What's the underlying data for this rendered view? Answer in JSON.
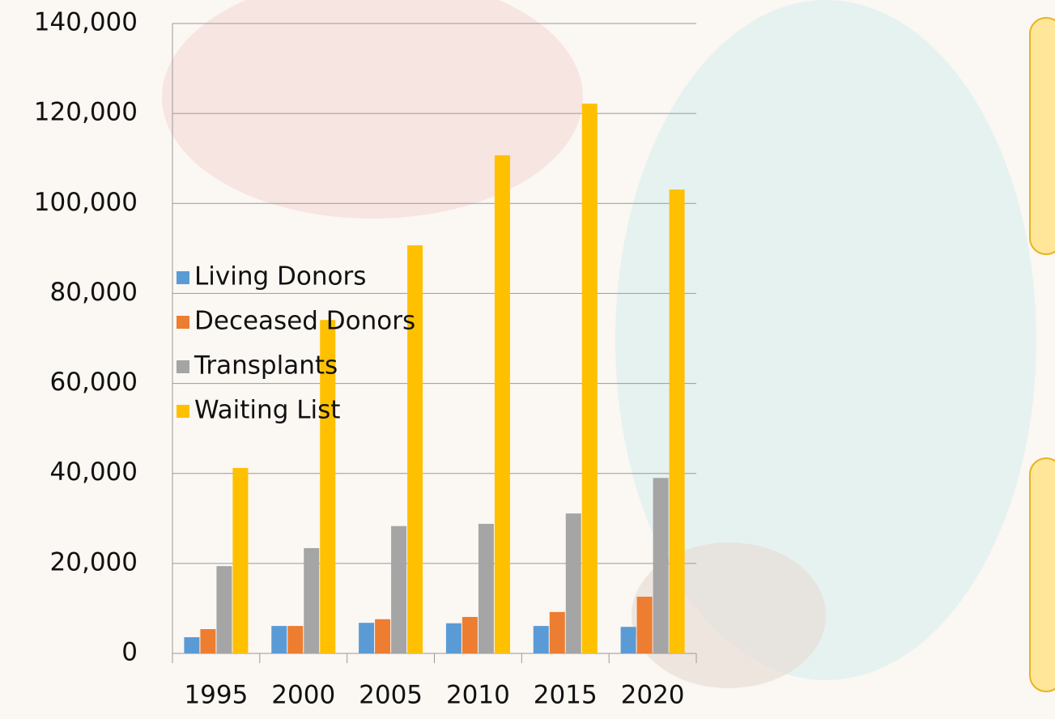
{
  "chart_data": {
    "type": "bar",
    "categories": [
      "1995",
      "2000",
      "2005",
      "2010",
      "2015",
      "2020"
    ],
    "series": [
      {
        "name": "Living Donors",
        "color": "#5b9bd5",
        "values": [
          3600,
          6100,
          6800,
          6700,
          6100,
          5900
        ]
      },
      {
        "name": "Deceased Donors",
        "color": "#ed7d31",
        "values": [
          5400,
          6100,
          7600,
          8100,
          9200,
          12600
        ]
      },
      {
        "name": "Transplants",
        "color": "#a5a5a5",
        "values": [
          19400,
          23400,
          28300,
          28800,
          31100,
          39000
        ]
      },
      {
        "name": "Waiting List",
        "color": "#ffc000",
        "values": [
          41200,
          74100,
          90700,
          110700,
          122200,
          103100
        ]
      }
    ],
    "ylim": [
      0,
      140000
    ],
    "yticks": [
      0,
      {
        "value": 20000,
        "label": "20,000"
      },
      {
        "value": 40000,
        "label": "40,000"
      },
      {
        "value": 60000,
        "label": "60,000"
      },
      {
        "value": 80000,
        "label": "80,000"
      },
      {
        "value": 100000,
        "label": "100,000"
      },
      {
        "value": 120000,
        "label": "120,000"
      },
      {
        "value": 140000,
        "label": "140,000"
      }
    ],
    "grid": true,
    "legend": "right"
  }
}
